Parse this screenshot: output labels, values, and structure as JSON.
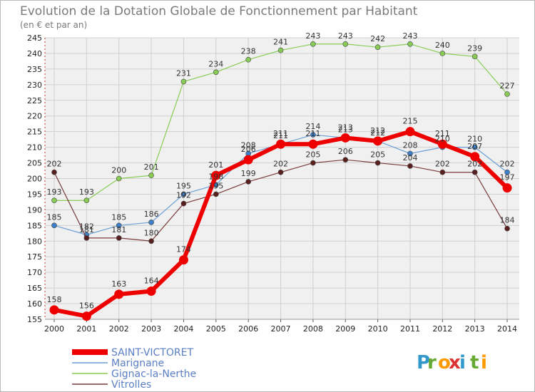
{
  "chart_data": {
    "type": "line",
    "title": "Evolution de la Dotation Globale de Fonctionnement par Habitant",
    "subtitle": "(en € et par an)",
    "xlabel": "",
    "ylabel": "",
    "ylim": [
      155,
      245
    ],
    "y_ticks": [
      155,
      160,
      165,
      170,
      175,
      180,
      185,
      190,
      195,
      200,
      205,
      210,
      215,
      220,
      225,
      230,
      235,
      240,
      245
    ],
    "x": [
      "2000",
      "2001",
      "2002",
      "2003",
      "2004",
      "2005",
      "2006",
      "2007",
      "2008",
      "2009",
      "2010",
      "2011",
      "2012",
      "2013",
      "2014"
    ],
    "grid": true,
    "legend_position": "bottom-left",
    "series": [
      {
        "name": "Gignac-la-Nerthe",
        "color": "#88cc55",
        "marker": "#88cc55",
        "width": 1.2,
        "radius": 3.5,
        "values": [
          193,
          193,
          200,
          201,
          231,
          234,
          238,
          241,
          243,
          243,
          242,
          243,
          240,
          239,
          227
        ],
        "labels": [
          "193",
          "193",
          "200",
          "201",
          "231",
          "234",
          "238",
          "241",
          "243",
          "243",
          "242",
          "243",
          "240",
          "239",
          "227"
        ]
      },
      {
        "name": "Marignane",
        "color": "#6b9fd6",
        "marker": "#3d7fc8",
        "width": 1.2,
        "radius": 3.5,
        "values": [
          185,
          182,
          185,
          186,
          195,
          198,
          208,
          211,
          214,
          213,
          212,
          208,
          210,
          210,
          202
        ],
        "labels": [
          "185",
          "182",
          "185",
          "186",
          "195",
          "198",
          "208",
          "211",
          "214",
          "213",
          "212",
          "208",
          "210",
          "210",
          "202"
        ]
      },
      {
        "name": "Vitrolles",
        "color": "#7a3b3b",
        "marker": "#5a1f1f",
        "width": 1.2,
        "radius": 3.5,
        "values": [
          202,
          181,
          181,
          180,
          192,
          195,
          199,
          202,
          205,
          206,
          205,
          204,
          202,
          202,
          184
        ],
        "labels": [
          "202",
          "181",
          "181",
          "180",
          "192",
          "195",
          "199",
          "202",
          "205",
          "206",
          "205",
          "204",
          "202",
          "202",
          "184"
        ]
      },
      {
        "name": "SAINT-VICTORET",
        "color": "#ee0000",
        "marker": "#ee0000",
        "width": 6,
        "radius": 6.5,
        "values": [
          158,
          156,
          163,
          164,
          174,
          201,
          206,
          211,
          211,
          213,
          212,
          215,
          211,
          207,
          197
        ],
        "labels": [
          "158",
          "156",
          "163",
          "164",
          "174",
          "201",
          "206",
          "211",
          "211",
          "213",
          "212",
          "215",
          "211",
          "207",
          "197"
        ]
      }
    ],
    "legend": [
      "SAINT-VICTORET",
      "Marignane",
      "Gignac-la-Nerthe",
      "Vitrolles"
    ]
  },
  "logo": {
    "letters": [
      "P",
      "r",
      "o",
      "x",
      "i",
      "t",
      "i"
    ],
    "colors": [
      "#3399cc",
      "#66aa33",
      "#ff9900",
      "#dd3333",
      "#3399cc",
      "#66aa33",
      "#ff9900"
    ]
  }
}
